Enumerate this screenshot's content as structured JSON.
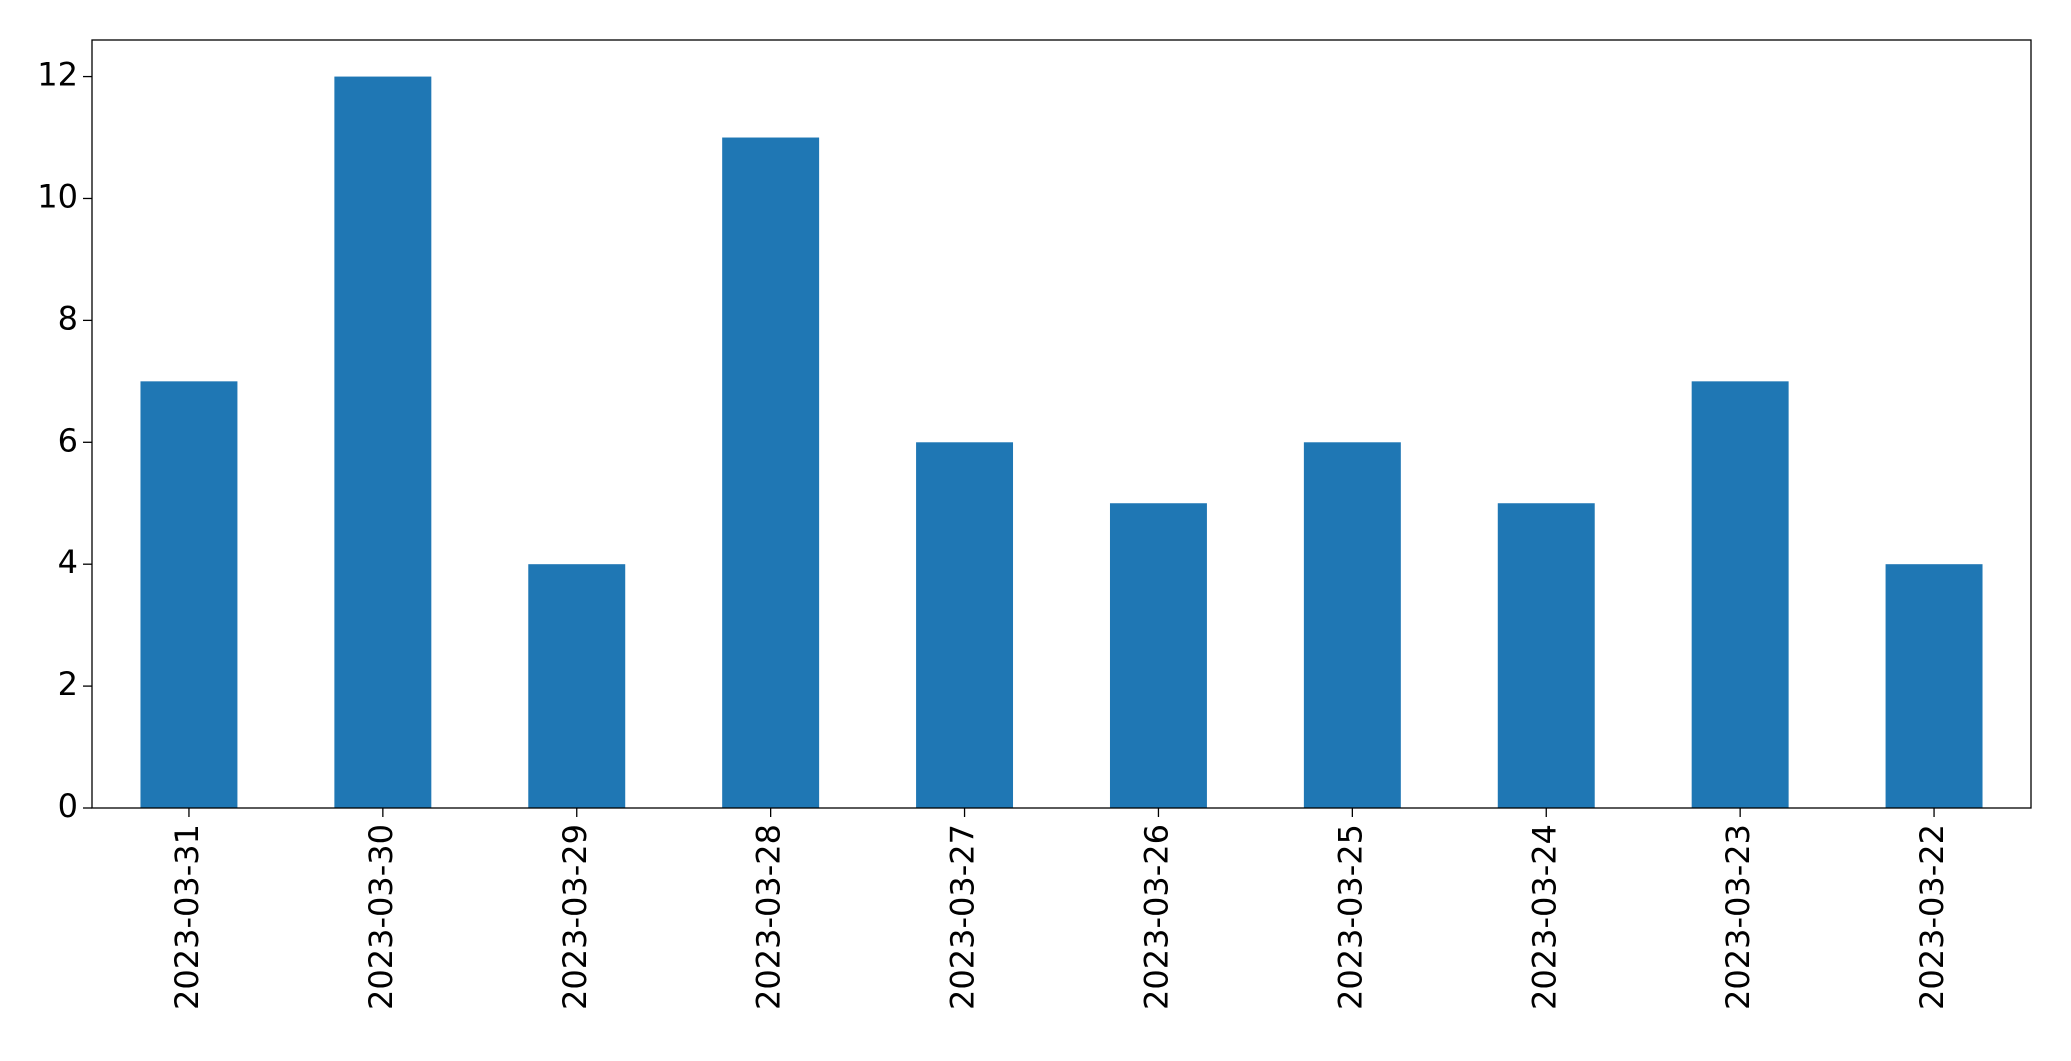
{
  "chart_data": {
    "type": "bar",
    "categories": [
      "2023-03-31",
      "2023-03-30",
      "2023-03-29",
      "2023-03-28",
      "2023-03-27",
      "2023-03-26",
      "2023-03-25",
      "2023-03-24",
      "2023-03-23",
      "2023-03-22"
    ],
    "values": [
      7,
      12,
      4,
      11,
      6,
      5,
      6,
      5,
      7,
      4
    ],
    "color": "#1f77b4",
    "ylim": [
      0,
      12.6
    ],
    "yticks": [
      0,
      2,
      4,
      6,
      8,
      10,
      12
    ],
    "grid": false
  }
}
